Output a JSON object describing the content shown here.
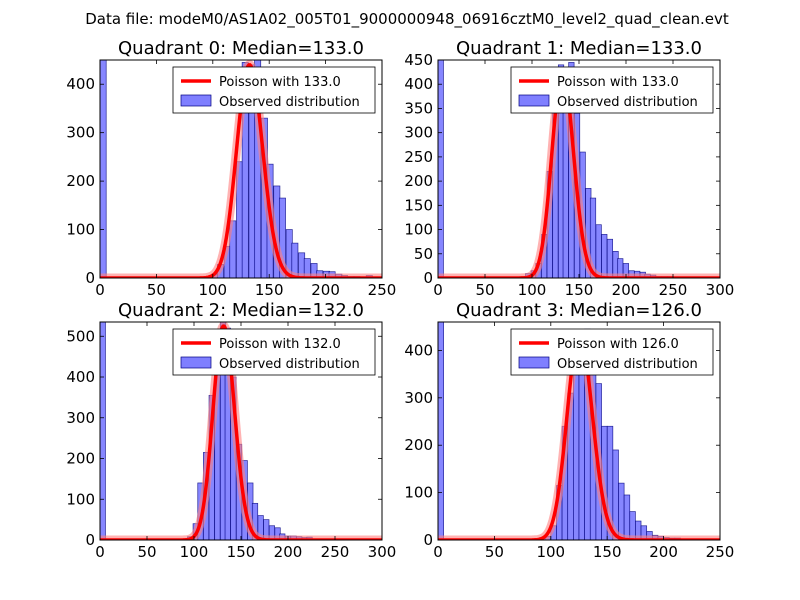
{
  "suptitle": "Data file: modeM0/AS1A02_005T01_9000000948_06916cztM0_level2_quad_clean.evt",
  "colors": {
    "bar_fill": "#7f7fff",
    "bar_edge": "#000080",
    "curve": "#ff0000",
    "curve_glow": "#ff8080"
  },
  "chart_data": [
    {
      "type": "bar",
      "title": "Quadrant 0: Median=133.0",
      "xlim": [
        0,
        250
      ],
      "ylim": [
        0,
        450
      ],
      "xticks": [
        "0",
        "50",
        "100",
        "150",
        "200",
        "250"
      ],
      "yticks": [
        "0",
        "100",
        "200",
        "300",
        "400"
      ],
      "ytick_values": [
        0,
        100,
        200,
        300,
        400
      ],
      "xtick_values": [
        0,
        50,
        100,
        150,
        200,
        250
      ],
      "bin_width": 5.5,
      "bins_left": [
        0,
        93,
        99,
        104,
        110,
        115,
        121,
        126,
        132,
        137,
        143,
        148,
        154,
        159,
        165,
        170,
        176,
        181,
        187,
        192,
        198,
        203,
        209,
        214,
        220,
        225,
        231,
        236
      ],
      "bins_count": [
        450,
        3,
        8,
        28,
        65,
        118,
        240,
        445,
        440,
        450,
        330,
        235,
        190,
        165,
        100,
        72,
        52,
        40,
        30,
        15,
        14,
        13,
        8,
        5,
        3,
        3,
        2,
        5
      ],
      "poisson": {
        "lambda": 133.0,
        "peak": 440
      },
      "legend": [
        "Poisson with 133.0",
        "Observed distribution"
      ]
    },
    {
      "type": "bar",
      "title": "Quadrant 1: Median=133.0",
      "xlim": [
        0,
        300
      ],
      "ylim": [
        0,
        450
      ],
      "xticks": [
        "0",
        "50",
        "100",
        "150",
        "200",
        "250",
        "300"
      ],
      "yticks": [
        "0",
        "50",
        "100",
        "150",
        "200",
        "250",
        "300",
        "350",
        "400",
        "450"
      ],
      "ytick_values": [
        0,
        50,
        100,
        150,
        200,
        250,
        300,
        350,
        400,
        450
      ],
      "xtick_values": [
        0,
        50,
        100,
        150,
        200,
        250,
        300
      ],
      "bin_width": 5.8,
      "bins_left": [
        0,
        81,
        87,
        93,
        99,
        104,
        110,
        116,
        122,
        128,
        133,
        139,
        145,
        151,
        157,
        162,
        168,
        174,
        180,
        186,
        191,
        197,
        203,
        209,
        215,
        220,
        226,
        232,
        238,
        244,
        250
      ],
      "bins_count": [
        450,
        1,
        3,
        9,
        15,
        30,
        90,
        220,
        385,
        440,
        430,
        445,
        340,
        260,
        185,
        165,
        110,
        90,
        80,
        55,
        40,
        30,
        15,
        14,
        12,
        8,
        6,
        3,
        3,
        3,
        1
      ],
      "poisson": {
        "lambda": 133.0,
        "peak": 425
      },
      "legend": [
        "Poisson with 133.0",
        "Observed distribution"
      ]
    },
    {
      "type": "bar",
      "title": "Quadrant 2: Median=132.0",
      "xlim": [
        0,
        300
      ],
      "ylim": [
        0,
        535
      ],
      "xticks": [
        "0",
        "50",
        "100",
        "150",
        "200",
        "250",
        "300"
      ],
      "yticks": [
        "0",
        "100",
        "200",
        "300",
        "400",
        "500"
      ],
      "ytick_values": [
        0,
        100,
        200,
        300,
        400,
        500
      ],
      "xtick_values": [
        0,
        50,
        100,
        150,
        200,
        250,
        300
      ],
      "bin_width": 5.8,
      "bins_left": [
        0,
        87,
        93,
        99,
        104,
        110,
        116,
        122,
        128,
        133,
        139,
        145,
        151,
        157,
        162,
        168,
        174,
        180,
        186,
        191,
        197,
        203,
        209,
        215,
        220,
        226
      ],
      "bins_count": [
        535,
        3,
        8,
        40,
        140,
        215,
        355,
        505,
        535,
        520,
        400,
        235,
        195,
        140,
        90,
        60,
        50,
        35,
        30,
        15,
        10,
        10,
        8,
        6,
        7,
        2
      ],
      "poisson": {
        "lambda": 132.0,
        "peak": 525
      },
      "legend": [
        "Poisson with 132.0",
        "Observed distribution"
      ]
    },
    {
      "type": "bar",
      "title": "Quadrant 3: Median=126.0",
      "xlim": [
        0,
        250
      ],
      "ylim": [
        0,
        460
      ],
      "xticks": [
        "0",
        "50",
        "100",
        "150",
        "200",
        "250"
      ],
      "yticks": [
        "0",
        "100",
        "200",
        "300",
        "400"
      ],
      "ytick_values": [
        0,
        100,
        200,
        300,
        400
      ],
      "xtick_values": [
        0,
        50,
        100,
        150,
        200,
        250
      ],
      "bin_width": 5.0,
      "bins_left": [
        0,
        85,
        90,
        95,
        100,
        105,
        110,
        115,
        120,
        125,
        130,
        135,
        140,
        145,
        150,
        155,
        160,
        165,
        170,
        175,
        180,
        185,
        190,
        195,
        200,
        205,
        210,
        215,
        220
      ],
      "bins_count": [
        460,
        1,
        5,
        8,
        30,
        115,
        240,
        310,
        440,
        420,
        445,
        395,
        330,
        240,
        240,
        190,
        120,
        95,
        60,
        40,
        30,
        18,
        10,
        8,
        5,
        4,
        4,
        2,
        1
      ],
      "poisson": {
        "lambda": 126.0,
        "peak": 435
      },
      "legend": [
        "Poisson with 126.0",
        "Observed distribution"
      ]
    }
  ]
}
